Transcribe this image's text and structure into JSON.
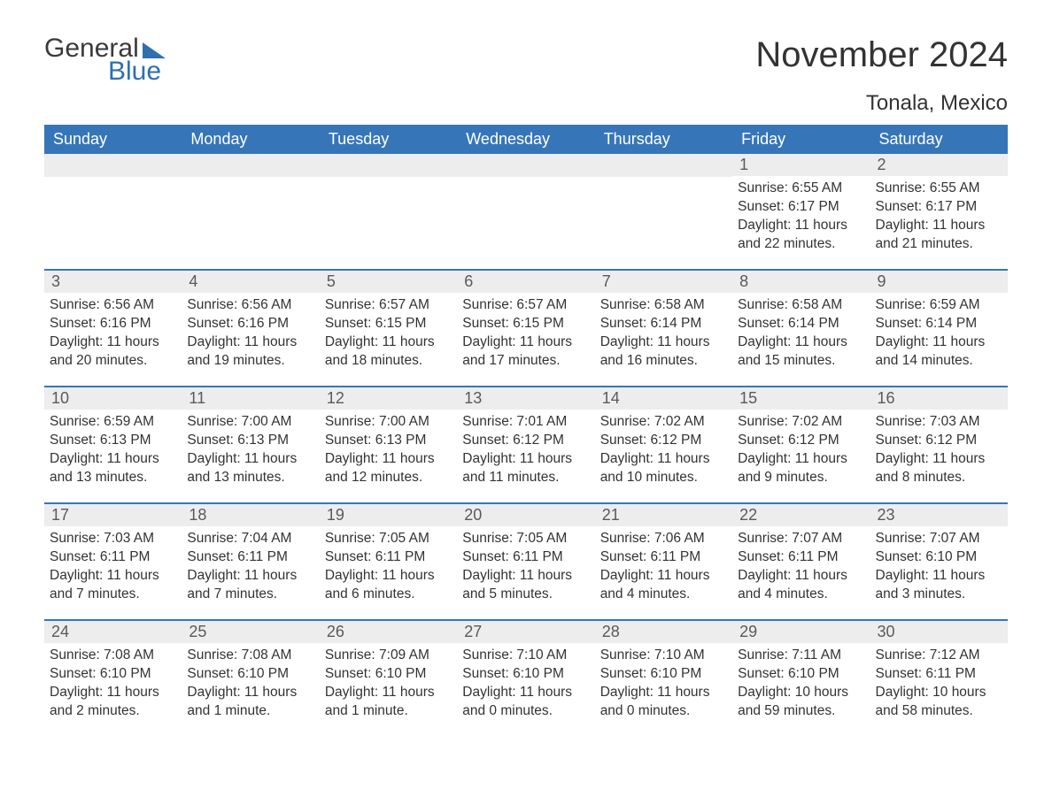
{
  "logo": {
    "text1": "General",
    "text2": "Blue"
  },
  "title": "November 2024",
  "location": "Tonala, Mexico",
  "colors": {
    "header_bg": "#3676b8",
    "header_text": "#ffffff",
    "daynum_bg": "#ededed",
    "border": "#3676b8",
    "body_text": "#333333",
    "logo_blue": "#2f6fb0"
  },
  "dayHeaders": [
    "Sunday",
    "Monday",
    "Tuesday",
    "Wednesday",
    "Thursday",
    "Friday",
    "Saturday"
  ],
  "weeks": [
    [
      null,
      null,
      null,
      null,
      null,
      {
        "n": "1",
        "sr": "6:55 AM",
        "ss": "6:17 PM",
        "dl": "11 hours and 22 minutes."
      },
      {
        "n": "2",
        "sr": "6:55 AM",
        "ss": "6:17 PM",
        "dl": "11 hours and 21 minutes."
      }
    ],
    [
      {
        "n": "3",
        "sr": "6:56 AM",
        "ss": "6:16 PM",
        "dl": "11 hours and 20 minutes."
      },
      {
        "n": "4",
        "sr": "6:56 AM",
        "ss": "6:16 PM",
        "dl": "11 hours and 19 minutes."
      },
      {
        "n": "5",
        "sr": "6:57 AM",
        "ss": "6:15 PM",
        "dl": "11 hours and 18 minutes."
      },
      {
        "n": "6",
        "sr": "6:57 AM",
        "ss": "6:15 PM",
        "dl": "11 hours and 17 minutes."
      },
      {
        "n": "7",
        "sr": "6:58 AM",
        "ss": "6:14 PM",
        "dl": "11 hours and 16 minutes."
      },
      {
        "n": "8",
        "sr": "6:58 AM",
        "ss": "6:14 PM",
        "dl": "11 hours and 15 minutes."
      },
      {
        "n": "9",
        "sr": "6:59 AM",
        "ss": "6:14 PM",
        "dl": "11 hours and 14 minutes."
      }
    ],
    [
      {
        "n": "10",
        "sr": "6:59 AM",
        "ss": "6:13 PM",
        "dl": "11 hours and 13 minutes."
      },
      {
        "n": "11",
        "sr": "7:00 AM",
        "ss": "6:13 PM",
        "dl": "11 hours and 13 minutes."
      },
      {
        "n": "12",
        "sr": "7:00 AM",
        "ss": "6:13 PM",
        "dl": "11 hours and 12 minutes."
      },
      {
        "n": "13",
        "sr": "7:01 AM",
        "ss": "6:12 PM",
        "dl": "11 hours and 11 minutes."
      },
      {
        "n": "14",
        "sr": "7:02 AM",
        "ss": "6:12 PM",
        "dl": "11 hours and 10 minutes."
      },
      {
        "n": "15",
        "sr": "7:02 AM",
        "ss": "6:12 PM",
        "dl": "11 hours and 9 minutes."
      },
      {
        "n": "16",
        "sr": "7:03 AM",
        "ss": "6:12 PM",
        "dl": "11 hours and 8 minutes."
      }
    ],
    [
      {
        "n": "17",
        "sr": "7:03 AM",
        "ss": "6:11 PM",
        "dl": "11 hours and 7 minutes."
      },
      {
        "n": "18",
        "sr": "7:04 AM",
        "ss": "6:11 PM",
        "dl": "11 hours and 7 minutes."
      },
      {
        "n": "19",
        "sr": "7:05 AM",
        "ss": "6:11 PM",
        "dl": "11 hours and 6 minutes."
      },
      {
        "n": "20",
        "sr": "7:05 AM",
        "ss": "6:11 PM",
        "dl": "11 hours and 5 minutes."
      },
      {
        "n": "21",
        "sr": "7:06 AM",
        "ss": "6:11 PM",
        "dl": "11 hours and 4 minutes."
      },
      {
        "n": "22",
        "sr": "7:07 AM",
        "ss": "6:11 PM",
        "dl": "11 hours and 4 minutes."
      },
      {
        "n": "23",
        "sr": "7:07 AM",
        "ss": "6:10 PM",
        "dl": "11 hours and 3 minutes."
      }
    ],
    [
      {
        "n": "24",
        "sr": "7:08 AM",
        "ss": "6:10 PM",
        "dl": "11 hours and 2 minutes."
      },
      {
        "n": "25",
        "sr": "7:08 AM",
        "ss": "6:10 PM",
        "dl": "11 hours and 1 minute."
      },
      {
        "n": "26",
        "sr": "7:09 AM",
        "ss": "6:10 PM",
        "dl": "11 hours and 1 minute."
      },
      {
        "n": "27",
        "sr": "7:10 AM",
        "ss": "6:10 PM",
        "dl": "11 hours and 0 minutes."
      },
      {
        "n": "28",
        "sr": "7:10 AM",
        "ss": "6:10 PM",
        "dl": "11 hours and 0 minutes."
      },
      {
        "n": "29",
        "sr": "7:11 AM",
        "ss": "6:10 PM",
        "dl": "10 hours and 59 minutes."
      },
      {
        "n": "30",
        "sr": "7:12 AM",
        "ss": "6:11 PM",
        "dl": "10 hours and 58 minutes."
      }
    ]
  ],
  "labels": {
    "sunrise": "Sunrise: ",
    "sunset": "Sunset: ",
    "daylight": "Daylight: "
  }
}
